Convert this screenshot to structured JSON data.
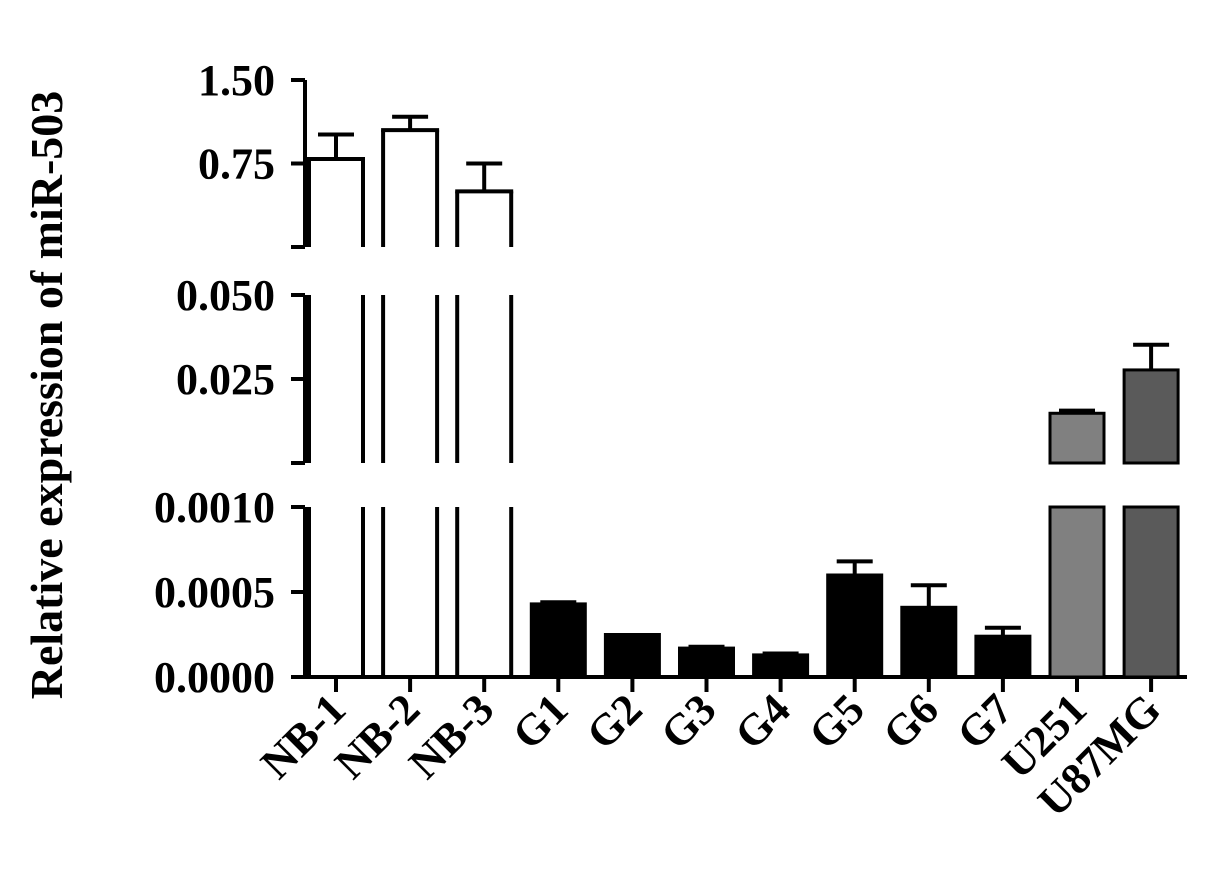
{
  "chart_data": {
    "type": "bar",
    "title": "",
    "xlabel": "",
    "ylabel": "Relative expression of miR-503",
    "categories": [
      "NB-1",
      "NB-2",
      "NB-3",
      "G1",
      "G2",
      "G3",
      "G4",
      "G5",
      "G6",
      "G7",
      "U251",
      "U87MG"
    ],
    "values": [
      0.79,
      1.05,
      0.5,
      0.00043,
      0.00025,
      0.00017,
      0.00013,
      0.0006,
      0.00041,
      0.00024,
      0.0148,
      0.0277
    ],
    "errors": [
      0.22,
      0.12,
      0.25,
      1e-05,
      5e-06,
      8e-06,
      8e-06,
      8e-05,
      0.00013,
      5e-05,
      0.0008,
      0.0075
    ],
    "fill_colors": [
      "#ffffff",
      "#ffffff",
      "#ffffff",
      "#000000",
      "#000000",
      "#000000",
      "#000000",
      "#000000",
      "#000000",
      "#000000",
      "#808080",
      "#5a5a5a"
    ],
    "axis_segments": [
      {
        "ylim": [
          0.0,
          0.001
        ],
        "ticks": [
          0.0,
          0.0005,
          0.001
        ],
        "tick_labels": [
          "0.0000",
          "0.0005",
          "0.0010"
        ]
      },
      {
        "ylim": [
          0.0,
          0.05
        ],
        "ticks": [
          0.025,
          0.05
        ],
        "tick_labels": [
          "0.025",
          "0.050"
        ]
      },
      {
        "ylim": [
          0.0,
          1.5
        ],
        "ticks": [
          0.75,
          1.5
        ],
        "tick_labels": [
          "0.75",
          "1.50"
        ]
      }
    ],
    "broken_axis": true,
    "grid": false,
    "legend": "none"
  }
}
